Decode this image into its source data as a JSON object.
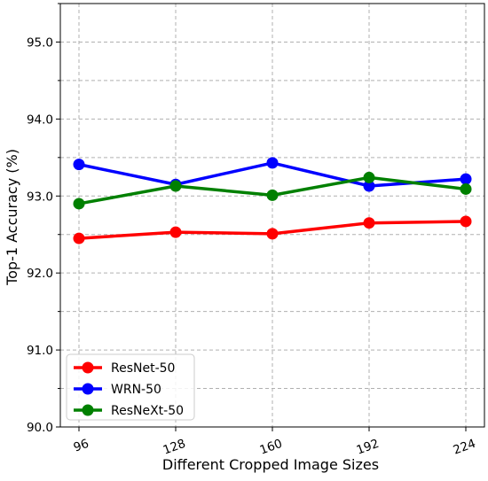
{
  "chart_data": {
    "type": "line",
    "title": "",
    "xlabel": "Different Cropped Image Sizes",
    "ylabel": "Top-1 Accuracy (%)",
    "x": [
      96,
      128,
      160,
      192,
      224
    ],
    "x_tick_labels": [
      "96",
      "128",
      "160",
      "192",
      "224"
    ],
    "ylim": [
      90.0,
      95.5
    ],
    "y_ticks": [
      90.0,
      91.0,
      92.0,
      93.0,
      94.0,
      95.0
    ],
    "y_tick_labels": [
      "90.0",
      "91.0",
      "92.0",
      "93.0",
      "94.0",
      "95.0"
    ],
    "grid": true,
    "legend_position": "bottom-left",
    "series": [
      {
        "name": "ResNet-50",
        "color": "#ff0000",
        "values": [
          92.45,
          92.53,
          92.51,
          92.65,
          92.67
        ]
      },
      {
        "name": "WRN-50",
        "color": "#0000ff",
        "values": [
          93.41,
          93.15,
          93.43,
          93.13,
          93.22
        ]
      },
      {
        "name": "ResNeXt-50",
        "color": "#008000",
        "values": [
          92.9,
          93.13,
          93.01,
          93.24,
          93.09
        ]
      }
    ]
  }
}
